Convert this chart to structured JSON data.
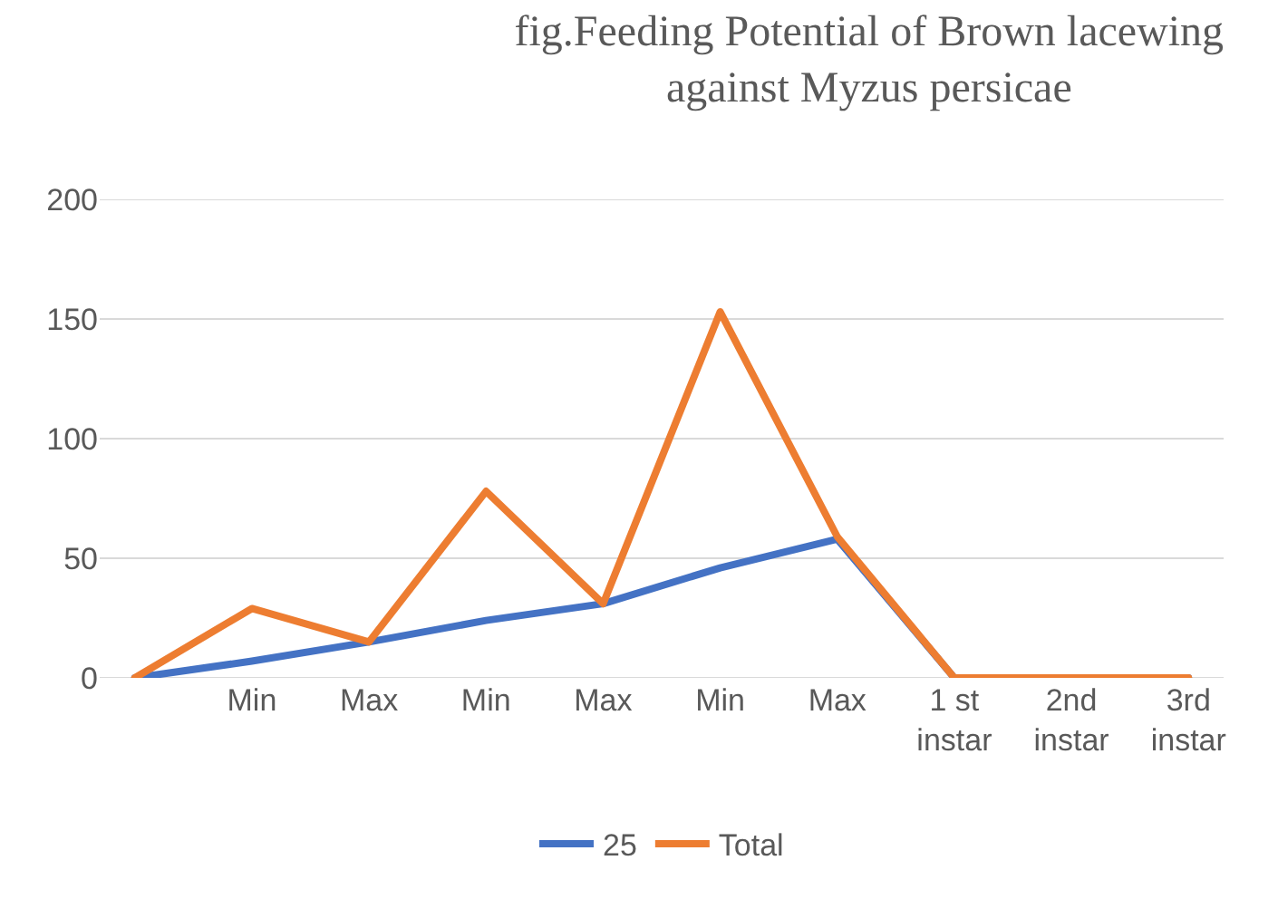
{
  "chart_data": {
    "type": "line",
    "title": "fig.Feeding Potential of Brown lacewing against Myzus persicae",
    "categories": [
      null,
      "Min",
      "Max",
      "Min",
      "Max",
      "Min",
      "Max",
      "1 st instar",
      "2nd instar",
      "3rd instar"
    ],
    "series": [
      {
        "name": "25",
        "color": "#4472c4",
        "values": [
          0,
          7,
          15,
          24,
          31,
          46,
          58,
          0,
          0,
          0
        ]
      },
      {
        "name": "Total",
        "color": "#ed7d31",
        "values": [
          0,
          29,
          15,
          78,
          31,
          153,
          59,
          0,
          0,
          0
        ]
      }
    ],
    "ylim": [
      0,
      200
    ],
    "yticks": [
      0,
      50,
      100,
      150,
      200
    ],
    "grid": "y",
    "legend": "bottom",
    "marker": "none",
    "line_style": "solid"
  }
}
